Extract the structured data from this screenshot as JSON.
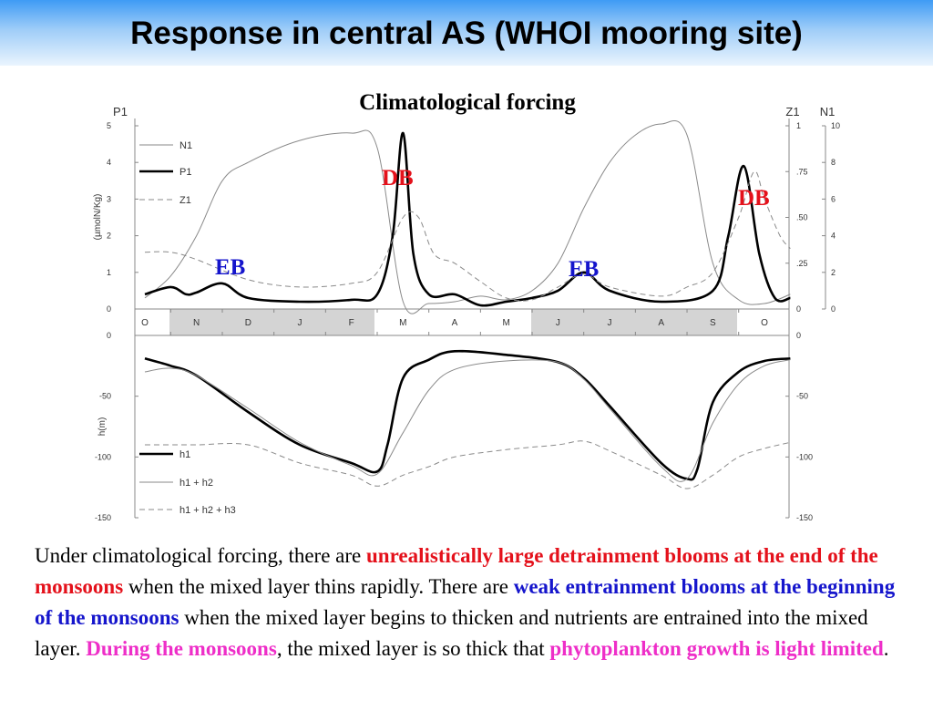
{
  "slide": {
    "title": "Response in central AS (WHOI mooring site)"
  },
  "colors": {
    "header_top": "#3f9bf5",
    "header_bottom": "#eaf4fe",
    "shaded_months": "#d4d4d4",
    "red": "#e4111b",
    "blue": "#1515cc",
    "pink": "#ee2ec8"
  },
  "chart_data": [
    {
      "type": "line",
      "title": "Climatological forcing",
      "left_axis": {
        "label": "P1",
        "unit_label": "(µmolN/Kg)",
        "ticks": [
          "0",
          "1",
          "2",
          "3",
          "4",
          "5"
        ],
        "range": [
          0,
          5
        ]
      },
      "right_axis_z": {
        "label": "Z1",
        "ticks": [
          "0",
          ".25",
          ".50",
          ".75",
          "1"
        ],
        "range": [
          0,
          1
        ]
      },
      "right_axis_n": {
        "label": "N1",
        "ticks": [
          "0",
          "2",
          "4",
          "6",
          "8",
          "10"
        ],
        "range": [
          0,
          10
        ]
      },
      "x_months": [
        "O",
        "N",
        "D",
        "J",
        "F",
        "M",
        "A",
        "M",
        "J",
        "J",
        "A",
        "S",
        "O"
      ],
      "shaded_periods": [
        [
          "N",
          "F"
        ],
        [
          "J",
          "S"
        ]
      ],
      "legend": [
        "N1",
        "P1",
        "Z1"
      ],
      "annotations": [
        {
          "text": "DB",
          "color": "red",
          "near": "F"
        },
        {
          "text": "EB",
          "color": "blue",
          "near": "N"
        },
        {
          "text": "EB",
          "color": "blue",
          "near": "J"
        },
        {
          "text": "DB",
          "color": "red",
          "near": "S"
        }
      ],
      "series": [
        {
          "name": "N1",
          "style": "thin solid",
          "axis": "N1",
          "values": [
            [
              0.0,
              0.6
            ],
            [
              0.5,
              1.8
            ],
            [
              1.0,
              4.0
            ],
            [
              1.5,
              7.0
            ],
            [
              2.0,
              8.0
            ],
            [
              3.0,
              9.2
            ],
            [
              4.0,
              9.6
            ],
            [
              4.5,
              8.8
            ],
            [
              5.0,
              0.4
            ],
            [
              5.5,
              0.3
            ],
            [
              6.0,
              0.4
            ],
            [
              6.5,
              0.7
            ],
            [
              7.0,
              0.5
            ],
            [
              7.5,
              1.0
            ],
            [
              8.0,
              2.5
            ],
            [
              8.5,
              5.5
            ],
            [
              9.0,
              8.0
            ],
            [
              9.5,
              9.5
            ],
            [
              10.0,
              10.1
            ],
            [
              10.5,
              9.5
            ],
            [
              11.0,
              2.5
            ],
            [
              11.5,
              0.5
            ],
            [
              12.0,
              0.3
            ],
            [
              12.5,
              0.8
            ]
          ]
        },
        {
          "name": "P1",
          "style": "thick solid",
          "axis": "P1",
          "values": [
            [
              0.0,
              0.4
            ],
            [
              0.5,
              0.6
            ],
            [
              0.8,
              0.4
            ],
            [
              1.0,
              0.45
            ],
            [
              1.5,
              0.7
            ],
            [
              2.0,
              0.3
            ],
            [
              3.0,
              0.2
            ],
            [
              4.0,
              0.25
            ],
            [
              4.5,
              0.4
            ],
            [
              4.8,
              2.0
            ],
            [
              5.0,
              4.8
            ],
            [
              5.2,
              1.5
            ],
            [
              5.5,
              0.4
            ],
            [
              6.0,
              0.4
            ],
            [
              6.5,
              0.1
            ],
            [
              7.0,
              0.2
            ],
            [
              7.5,
              0.3
            ],
            [
              8.0,
              0.5
            ],
            [
              8.5,
              1.0
            ],
            [
              9.0,
              0.5
            ],
            [
              10.0,
              0.2
            ],
            [
              11.0,
              0.5
            ],
            [
              11.3,
              2.0
            ],
            [
              11.6,
              3.9
            ],
            [
              11.9,
              1.5
            ],
            [
              12.2,
              0.3
            ],
            [
              12.5,
              0.3
            ]
          ]
        },
        {
          "name": "Z1",
          "style": "dashed",
          "axis": "Z1",
          "values": [
            [
              0.0,
              0.31
            ],
            [
              0.5,
              0.31
            ],
            [
              1.0,
              0.27
            ],
            [
              2.0,
              0.16
            ],
            [
              3.0,
              0.12
            ],
            [
              4.0,
              0.14
            ],
            [
              4.5,
              0.2
            ],
            [
              5.0,
              0.5
            ],
            [
              5.3,
              0.5
            ],
            [
              5.6,
              0.3
            ],
            [
              6.0,
              0.25
            ],
            [
              6.5,
              0.15
            ],
            [
              7.0,
              0.06
            ],
            [
              7.5,
              0.05
            ],
            [
              8.0,
              0.12
            ],
            [
              8.5,
              0.19
            ],
            [
              9.0,
              0.12
            ],
            [
              10.0,
              0.07
            ],
            [
              10.5,
              0.12
            ],
            [
              11.0,
              0.2
            ],
            [
              11.5,
              0.5
            ],
            [
              11.8,
              0.75
            ],
            [
              12.0,
              0.6
            ],
            [
              12.3,
              0.4
            ],
            [
              12.5,
              0.33
            ]
          ]
        }
      ]
    },
    {
      "type": "line",
      "left_axis": {
        "label": "h(m)",
        "ticks": [
          "0",
          "-50",
          "-100",
          "-150"
        ],
        "range": [
          -150,
          0
        ]
      },
      "right_axis": {
        "ticks": [
          "0",
          "-50",
          "-100",
          "-150"
        ],
        "range": [
          -150,
          0
        ]
      },
      "legend": [
        "h1",
        "h1 + h2",
        "h1 + h2 + h3"
      ],
      "series": [
        {
          "name": "h1",
          "style": "thick solid",
          "values": [
            [
              0.0,
              -19
            ],
            [
              0.5,
              -25
            ],
            [
              1.0,
              -33
            ],
            [
              2.0,
              -63
            ],
            [
              3.0,
              -90
            ],
            [
              4.0,
              -105
            ],
            [
              4.5,
              -112
            ],
            [
              4.7,
              -90
            ],
            [
              5.0,
              -35
            ],
            [
              5.5,
              -20
            ],
            [
              6.0,
              -13
            ],
            [
              7.0,
              -16
            ],
            [
              8.0,
              -22
            ],
            [
              8.5,
              -35
            ],
            [
              9.0,
              -58
            ],
            [
              10.0,
              -105
            ],
            [
              10.5,
              -118
            ],
            [
              10.7,
              -110
            ],
            [
              11.0,
              -55
            ],
            [
              11.5,
              -30
            ],
            [
              12.0,
              -21
            ],
            [
              12.5,
              -19
            ]
          ]
        },
        {
          "name": "h1 + h2",
          "style": "thin solid",
          "values": [
            [
              0.0,
              -30
            ],
            [
              0.5,
              -27
            ],
            [
              1.0,
              -33
            ],
            [
              2.0,
              -60
            ],
            [
              3.0,
              -88
            ],
            [
              4.0,
              -107
            ],
            [
              4.5,
              -114
            ],
            [
              5.0,
              -80
            ],
            [
              5.5,
              -45
            ],
            [
              6.0,
              -28
            ],
            [
              7.0,
              -21
            ],
            [
              8.0,
              -22
            ],
            [
              8.5,
              -36
            ],
            [
              9.0,
              -60
            ],
            [
              10.0,
              -108
            ],
            [
              10.5,
              -118
            ],
            [
              11.0,
              -72
            ],
            [
              11.5,
              -40
            ],
            [
              12.0,
              -25
            ],
            [
              12.5,
              -20
            ]
          ]
        },
        {
          "name": "h1 + h2 + h3",
          "style": "dashed",
          "values": [
            [
              0.0,
              -90
            ],
            [
              0.5,
              -90
            ],
            [
              1.0,
              -90
            ],
            [
              2.0,
              -90
            ],
            [
              3.0,
              -105
            ],
            [
              4.0,
              -115
            ],
            [
              4.5,
              -124
            ],
            [
              5.0,
              -115
            ],
            [
              5.5,
              -108
            ],
            [
              6.0,
              -100
            ],
            [
              7.0,
              -94
            ],
            [
              8.0,
              -90
            ],
            [
              8.5,
              -87
            ],
            [
              9.0,
              -95
            ],
            [
              10.0,
              -115
            ],
            [
              10.5,
              -126
            ],
            [
              11.0,
              -115
            ],
            [
              11.5,
              -100
            ],
            [
              12.0,
              -93
            ],
            [
              12.5,
              -88
            ]
          ]
        }
      ]
    }
  ],
  "caption": {
    "p1": "Under climatological forcing, there are ",
    "h1": "unrealistically large detrainment blooms at the end of the monsoons",
    "p2": " when the mixed layer thins rapidly.  There are ",
    "h2": "weak entrainment blooms at the beginning of the monsoons",
    "p3": " when the mixed layer begins to thicken and nutrients are entrained into the mixed layer.  ",
    "h3": "During the monsoons",
    "p4": ", the mixed layer is so thick that ",
    "h4": "phytoplankton growth is light limited",
    "p5": "."
  }
}
